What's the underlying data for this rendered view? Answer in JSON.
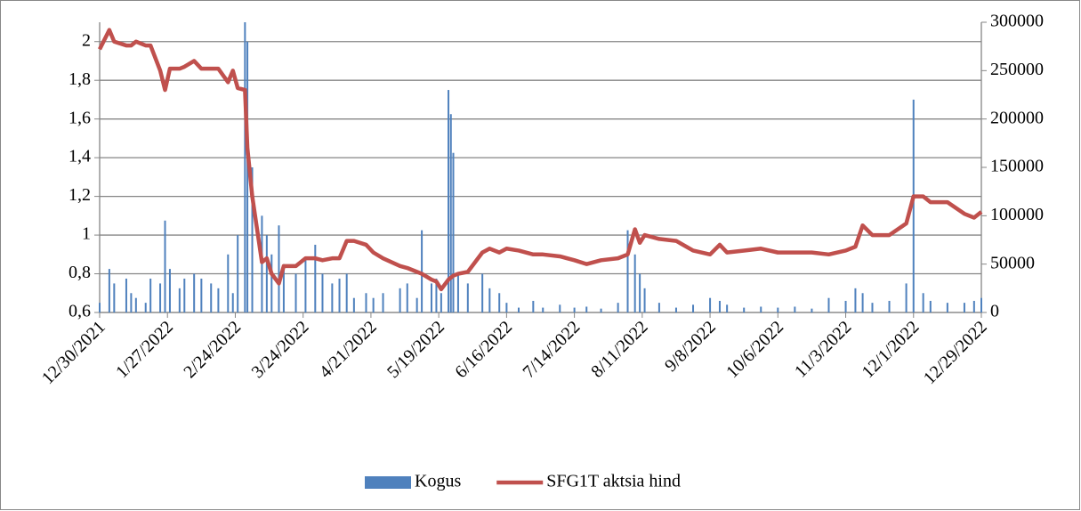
{
  "chart_data": {
    "type": "combo",
    "x": [
      "12/30/2021",
      "1/3/2022",
      "1/5/2022",
      "1/10/2022",
      "1/12/2022",
      "1/14/2022",
      "1/18/2022",
      "1/20/2022",
      "1/24/2022",
      "1/26/2022",
      "1/28/2022",
      "2/1/2022",
      "2/3/2022",
      "2/7/2022",
      "2/10/2022",
      "2/14/2022",
      "2/17/2022",
      "2/21/2022",
      "2/23/2022",
      "2/25/2022",
      "2/28/2022",
      "3/1/2022",
      "3/3/2022",
      "3/7/2022",
      "3/9/2022",
      "3/11/2022",
      "3/14/2022",
      "3/16/2022",
      "3/21/2022",
      "3/25/2022",
      "3/29/2022",
      "4/1/2022",
      "4/5/2022",
      "4/8/2022",
      "4/11/2022",
      "4/14/2022",
      "4/19/2022",
      "4/22/2022",
      "4/26/2022",
      "5/3/2022",
      "5/6/2022",
      "5/10/2022",
      "5/12/2022",
      "5/16/2022",
      "5/18/2022",
      "5/20/2022",
      "5/23/2022",
      "5/24/2022",
      "5/25/2022",
      "5/27/2022",
      "5/31/2022",
      "6/6/2022",
      "6/9/2022",
      "6/13/2022",
      "6/16/2022",
      "6/21/2022",
      "6/27/2022",
      "7/1/2022",
      "7/8/2022",
      "7/14/2022",
      "7/19/2022",
      "7/25/2022",
      "8/1/2022",
      "8/5/2022",
      "8/8/2022",
      "8/10/2022",
      "8/12/2022",
      "8/18/2022",
      "8/25/2022",
      "9/1/2022",
      "9/8/2022",
      "9/12/2022",
      "9/15/2022",
      "9/22/2022",
      "9/29/2022",
      "10/6/2022",
      "10/13/2022",
      "10/20/2022",
      "10/27/2022",
      "11/3/2022",
      "11/7/2022",
      "11/10/2022",
      "11/14/2022",
      "11/21/2022",
      "11/28/2022",
      "12/1/2022",
      "12/5/2022",
      "12/8/2022",
      "12/15/2022",
      "12/22/2022",
      "12/26/2022",
      "12/29/2022"
    ],
    "series": [
      {
        "name": "Kogus",
        "type": "bar",
        "axis": "y2",
        "color": "#4f81bd",
        "values": [
          10000,
          45000,
          30000,
          35000,
          20000,
          15000,
          10000,
          35000,
          30000,
          95000,
          45000,
          25000,
          35000,
          40000,
          35000,
          30000,
          25000,
          60000,
          20000,
          80000,
          300000,
          280000,
          150000,
          100000,
          80000,
          60000,
          90000,
          50000,
          40000,
          55000,
          70000,
          40000,
          30000,
          35000,
          40000,
          15000,
          20000,
          15000,
          20000,
          25000,
          30000,
          15000,
          85000,
          30000,
          35000,
          20000,
          230000,
          205000,
          165000,
          40000,
          30000,
          40000,
          25000,
          20000,
          10000,
          5000,
          12000,
          5000,
          8000,
          5000,
          6000,
          4000,
          10000,
          85000,
          60000,
          40000,
          25000,
          10000,
          5000,
          8000,
          15000,
          12000,
          8000,
          5000,
          6000,
          5000,
          6000,
          4000,
          15000,
          12000,
          25000,
          20000,
          10000,
          12000,
          30000,
          220000,
          20000,
          12000,
          10000,
          10000,
          12000,
          15000
        ]
      },
      {
        "name": "SFG1T aktsia hind",
        "type": "line",
        "color": "#c0504d",
        "values": [
          1.96,
          2.06,
          2.0,
          1.98,
          1.98,
          2.0,
          1.98,
          1.98,
          1.85,
          1.75,
          1.86,
          1.86,
          1.87,
          1.9,
          1.86,
          1.86,
          1.86,
          1.79,
          1.85,
          1.76,
          1.75,
          1.45,
          1.2,
          0.86,
          0.88,
          0.8,
          0.75,
          0.84,
          0.84,
          0.88,
          0.88,
          0.87,
          0.88,
          0.88,
          0.97,
          0.97,
          0.95,
          0.91,
          0.88,
          0.84,
          0.83,
          0.81,
          0.8,
          0.77,
          0.76,
          0.72,
          0.77,
          0.78,
          0.79,
          0.8,
          0.81,
          0.91,
          0.93,
          0.91,
          0.93,
          0.92,
          0.9,
          0.9,
          0.89,
          0.87,
          0.85,
          0.87,
          0.88,
          0.9,
          1.03,
          0.96,
          1.0,
          0.98,
          0.97,
          0.92,
          0.9,
          0.95,
          0.91,
          0.92,
          0.93,
          0.91,
          0.91,
          0.91,
          0.9,
          0.92,
          0.94,
          1.05,
          1.0,
          1.0,
          1.06,
          1.2,
          1.2,
          1.17,
          1.17,
          1.11,
          1.09,
          1.12
        ]
      }
    ],
    "xlim": [
      "12/30/2021",
      "12/29/2022"
    ],
    "xticks": [
      "12/30/2021",
      "1/27/2022",
      "2/24/2022",
      "3/24/2022",
      "4/21/2022",
      "5/19/2022",
      "6/16/2022",
      "7/14/2022",
      "8/11/2022",
      "9/8/2022",
      "10/6/2022",
      "11/3/2022",
      "12/1/2022",
      "12/29/2022"
    ],
    "ylim": [
      0.6,
      2.1
    ],
    "yticks": [
      {
        "value": 0.6,
        "label": "0,6"
      },
      {
        "value": 0.8,
        "label": "0,8"
      },
      1,
      {
        "value": 1.2,
        "label": "1,2"
      },
      {
        "value": 1.4,
        "label": "1,4"
      },
      {
        "value": 1.6,
        "label": "1,6"
      },
      {
        "value": 1.8,
        "label": "1,8"
      },
      2
    ],
    "y2lim": [
      0,
      300000
    ],
    "y2ticks": [
      0,
      50000,
      100000,
      150000,
      200000,
      250000,
      300000
    ],
    "grid": true,
    "legend": "bottom"
  }
}
